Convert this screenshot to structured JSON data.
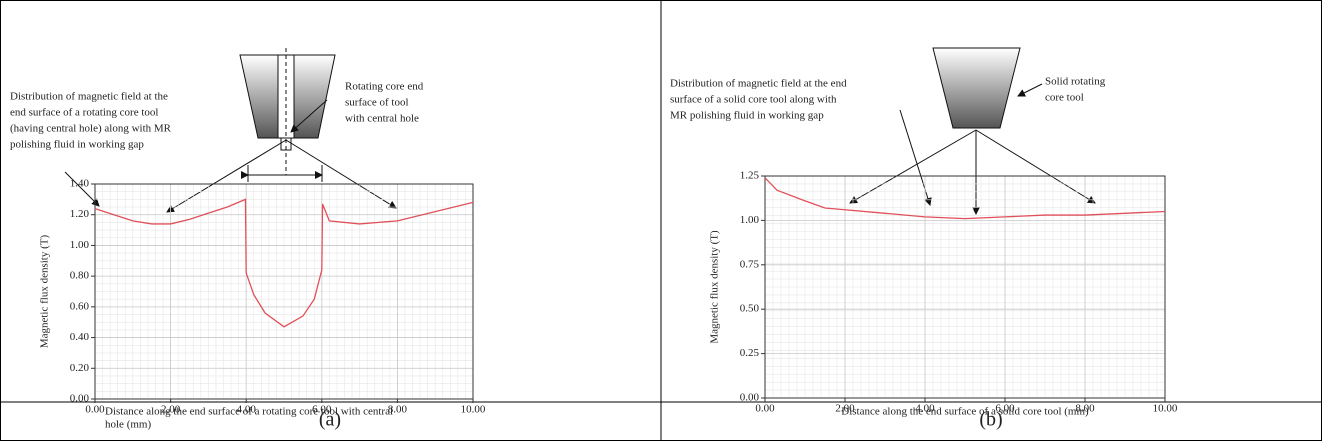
{
  "chart_data": [
    {
      "type": "line",
      "x": [
        0,
        0.5,
        1.0,
        1.5,
        2.0,
        2.5,
        3.0,
        3.5,
        3.98,
        4.0,
        4.2,
        4.5,
        5.0,
        5.5,
        5.8,
        6.0,
        6.02,
        6.2,
        7.0,
        8.0,
        9.0,
        10.0
      ],
      "values": [
        1.24,
        1.2,
        1.16,
        1.14,
        1.14,
        1.17,
        1.21,
        1.25,
        1.3,
        0.82,
        0.68,
        0.56,
        0.47,
        0.54,
        0.65,
        0.84,
        1.27,
        1.16,
        1.14,
        1.16,
        1.22,
        1.28
      ],
      "color": "#e0505a",
      "xlim": [
        0,
        10
      ],
      "ylim": [
        0,
        1.4
      ],
      "xticks": [
        {
          "value": 0,
          "label": "0.00"
        },
        {
          "value": 2,
          "label": "2.00"
        },
        {
          "value": 4,
          "label": "4.00"
        },
        {
          "value": 6,
          "label": "6.00"
        },
        {
          "value": 8,
          "label": "8.00"
        },
        {
          "value": 10,
          "label": "10.00"
        }
      ],
      "yticks": [
        {
          "value": 0,
          "label": "0.00"
        },
        {
          "value": 0.2,
          "label": "0.20"
        },
        {
          "value": 0.4,
          "label": "0.40"
        },
        {
          "value": 0.6,
          "label": "0.60"
        },
        {
          "value": 0.8,
          "label": "0.80"
        },
        {
          "value": 1.0,
          "label": "1.00"
        },
        {
          "value": 1.2,
          "label": "1.20"
        },
        {
          "value": 1.4,
          "label": "1.40"
        }
      ],
      "grid": true,
      "x_label": [
        "Distance along the end surface of a rotating core tool with central",
        "hole (mm)"
      ],
      "y_label": "Magnetic flux density (T)",
      "annotations": [
        [
          "Distribution of magnetic field at the",
          "end surface of a rotating core tool",
          "(having central hole) along with MR",
          "polishing fluid in working gap"
        ],
        [
          "Rotating core end",
          "surface of tool",
          "with central hole"
        ]
      ],
      "caption": "(a)"
    },
    {
      "type": "line",
      "x": [
        0,
        0.3,
        1.0,
        1.5,
        2.0,
        3.0,
        4.0,
        5.0,
        6.0,
        7.0,
        8.0,
        9.0,
        10.0
      ],
      "values": [
        1.24,
        1.17,
        1.11,
        1.07,
        1.06,
        1.04,
        1.02,
        1.01,
        1.02,
        1.03,
        1.03,
        1.04,
        1.05
      ],
      "color": "#e0505a",
      "xlim": [
        0,
        10
      ],
      "ylim": [
        0,
        1.25
      ],
      "xticks": [
        {
          "value": 0,
          "label": "0.00"
        },
        {
          "value": 2,
          "label": "2.00"
        },
        {
          "value": 4,
          "label": "4.00"
        },
        {
          "value": 6,
          "label": "6.00"
        },
        {
          "value": 8,
          "label": "8.00"
        },
        {
          "value": 10,
          "label": "10.00"
        }
      ],
      "yticks": [
        {
          "value": 0,
          "label": "0.00"
        },
        {
          "value": 0.25,
          "label": "0.25"
        },
        {
          "value": 0.5,
          "label": "0.50"
        },
        {
          "value": 0.75,
          "label": "0.75"
        },
        {
          "value": 1.0,
          "label": "1.00"
        },
        {
          "value": 1.25,
          "label": "1.25"
        }
      ],
      "grid": true,
      "x_label": [
        "Distance along the end surface of a solid core tool (mm)"
      ],
      "y_label": "Magnetic flux density (T)",
      "annotations": [
        [
          "Distribution of magnetic field at the end",
          "surface of a solid core tool along with",
          "MR polishing fluid in working gap"
        ],
        [
          "Solid rotating",
          "core tool"
        ]
      ],
      "caption": "(b)"
    }
  ]
}
